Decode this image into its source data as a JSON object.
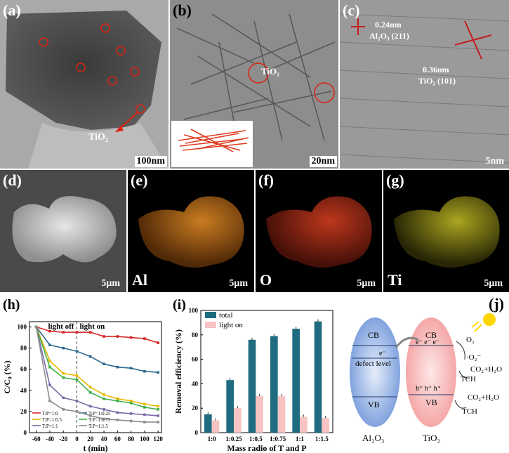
{
  "panels": {
    "a": {
      "label": "(a)",
      "scale": "100nm",
      "annotation": "TiO₂"
    },
    "b": {
      "label": "(b)",
      "scale": "20nm",
      "annotation": "TiO₂"
    },
    "c": {
      "label": "(c)",
      "scale": "5nm",
      "ann1_line1": "0.24nm",
      "ann1_line2": "Al₂O₃ (211)",
      "ann2_line1": "0.36nm",
      "ann2_line2": "TiO₂ (101)"
    },
    "d": {
      "label": "(d)",
      "scale": "5μm"
    },
    "e": {
      "label": "(e)",
      "scale": "5μm",
      "element": "Al",
      "color": "#d9791a"
    },
    "f": {
      "label": "(f)",
      "scale": "5μm",
      "element": "O",
      "color": "#c8341c"
    },
    "g": {
      "label": "(g)",
      "scale": "5μm",
      "element": "Ti",
      "color": "#b7b21e"
    },
    "h": {
      "label": "(h)",
      "light_off": "light off",
      "light_on": "light on"
    },
    "i": {
      "label": "(i)"
    },
    "j": {
      "label": "(j)",
      "cb_left": "CB",
      "vb_left": "VB",
      "defect": "defect level",
      "al2o3": "Al₂O₃",
      "cb_right": "CB",
      "vb_right": "VB",
      "tio2": "TiO₂",
      "electron": "e⁻",
      "hole": "h⁺",
      "o2": "O₂",
      "o2rad": "·O₂⁻",
      "co2_1": "CO₂+H₂O",
      "tch1": "TCH",
      "co2_2": "CO₂+H₂O",
      "tch2": "TCH"
    }
  },
  "chart_data": [
    {
      "type": "line",
      "panel": "h",
      "xlabel": "t (min)",
      "ylabel": "C/C₀ (%)",
      "xlim": [
        -70,
        125
      ],
      "ylim": [
        0,
        105
      ],
      "xticks": [
        -60,
        -40,
        -20,
        0,
        20,
        40,
        60,
        80,
        100,
        120
      ],
      "yticks": [
        0,
        20,
        40,
        60,
        80,
        100
      ],
      "x": [
        -60,
        -40,
        -20,
        0,
        20,
        40,
        60,
        80,
        100,
        120
      ],
      "series": [
        {
          "name": "T:P=1:0",
          "color": "#d62728",
          "values": [
            100,
            96,
            95,
            95,
            95,
            91,
            91,
            90,
            89,
            85
          ]
        },
        {
          "name": "T:P=1:0.25",
          "color": "#2b6a8f",
          "values": [
            100,
            83,
            80,
            77,
            72,
            65,
            62,
            61,
            58,
            57
          ]
        },
        {
          "name": "T:P=1:0.5",
          "color": "#e6b800",
          "values": [
            100,
            68,
            56,
            54,
            43,
            36,
            32,
            30,
            27,
            25
          ]
        },
        {
          "name": "T:P=1:0.75",
          "color": "#3fae49",
          "values": [
            100,
            62,
            52,
            50,
            38,
            32,
            30,
            28,
            24,
            22
          ]
        },
        {
          "name": "T:P=1:1",
          "color": "#7b6aa6",
          "values": [
            100,
            45,
            33,
            30,
            25,
            22,
            19,
            18,
            17,
            16
          ]
        },
        {
          "name": "T:P=1:1.5",
          "color": "#8c8c8c",
          "values": [
            100,
            30,
            22,
            20,
            16,
            13,
            12,
            11,
            10,
            10
          ]
        }
      ]
    },
    {
      "type": "bar",
      "panel": "i",
      "xlabel": "Mass radio of T and P",
      "ylabel": "Removal efficiency (%)",
      "ylim": [
        0,
        100
      ],
      "yticks": [
        0,
        20,
        40,
        60,
        80,
        100
      ],
      "categories": [
        "1:0",
        "1:0.25",
        "1:0.5",
        "1:0.75",
        "1:1",
        "1:1.5"
      ],
      "series": [
        {
          "name": "total",
          "color": "#1f6b80",
          "values": [
            15,
            43,
            76,
            79,
            85,
            91
          ]
        },
        {
          "name": "light on",
          "color": "#f7c3c3",
          "values": [
            10,
            20,
            30,
            30,
            13,
            12
          ]
        }
      ]
    }
  ]
}
